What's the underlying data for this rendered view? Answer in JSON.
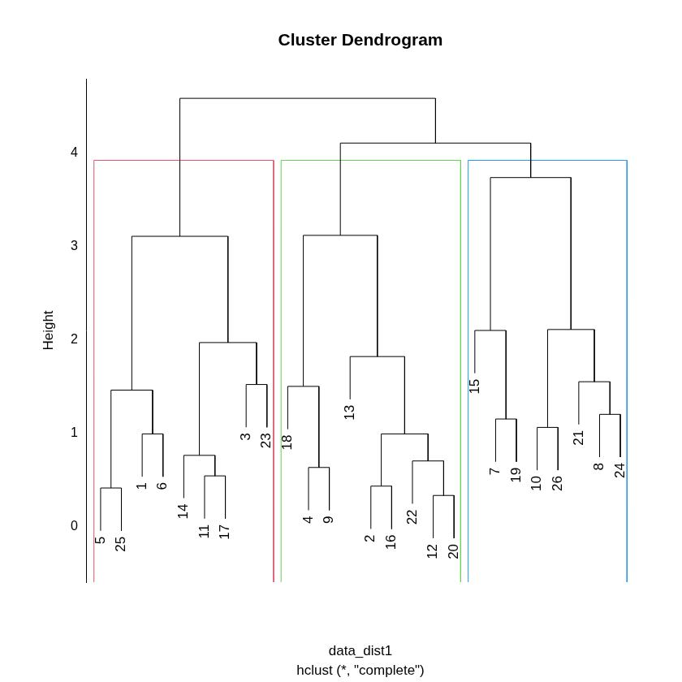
{
  "chart_data": {
    "type": "dendrogram",
    "title": "Cluster Dendrogram",
    "x_label": "data_dist1",
    "subtitle": "hclust (*, \"complete\")",
    "y_label": "Height",
    "ylim": [
      -0.6,
      4.8
    ],
    "yticks": [
      0,
      1,
      2,
      3,
      4
    ],
    "grid": false,
    "clusters": 3,
    "colors": [
      "#DF536B",
      "#61D04F",
      "#2297E6"
    ],
    "tree": {
      "height": 4.59,
      "children": [
        {
          "height": 3.11,
          "children": [
            {
              "height": 1.46,
              "children": [
                {
                  "height": 0.41,
                  "children": [
                    "5",
                    "25"
                  ]
                },
                {
                  "height": 0.99,
                  "children": [
                    "1",
                    "6"
                  ]
                }
              ]
            },
            {
              "height": 1.97,
              "children": [
                {
                  "height": 0.76,
                  "children": [
                    "14",
                    {
                      "height": 0.54,
                      "children": [
                        "11",
                        "17"
                      ]
                    }
                  ]
                },
                {
                  "height": 1.52,
                  "children": [
                    "3",
                    "23"
                  ]
                }
              ]
            }
          ]
        },
        {
          "height": 4.11,
          "children": [
            {
              "height": 3.12,
              "children": [
                {
                  "height": 1.5,
                  "children": [
                    "18",
                    {
                      "height": 0.63,
                      "children": [
                        "4",
                        "9"
                      ]
                    }
                  ]
                },
                {
                  "height": 1.82,
                  "children": [
                    "13",
                    {
                      "height": 0.99,
                      "children": [
                        {
                          "height": 0.43,
                          "children": [
                            "2",
                            "16"
                          ]
                        },
                        {
                          "height": 0.7,
                          "children": [
                            "22",
                            {
                              "height": 0.33,
                              "children": [
                                "12",
                                "20"
                              ]
                            }
                          ]
                        }
                      ]
                    }
                  ]
                }
              ]
            },
            {
              "height": 3.74,
              "children": [
                {
                  "height": 2.1,
                  "children": [
                    "15",
                    {
                      "height": 1.15,
                      "children": [
                        "7",
                        "19"
                      ]
                    }
                  ]
                },
                {
                  "height": 2.11,
                  "children": [
                    {
                      "height": 1.06,
                      "children": [
                        "10",
                        "26"
                      ]
                    },
                    {
                      "height": 1.55,
                      "children": [
                        "21",
                        {
                          "height": 1.2,
                          "children": [
                            "8",
                            "24"
                          ]
                        }
                      ]
                    }
                  ]
                }
              ]
            }
          ]
        }
      ]
    }
  }
}
